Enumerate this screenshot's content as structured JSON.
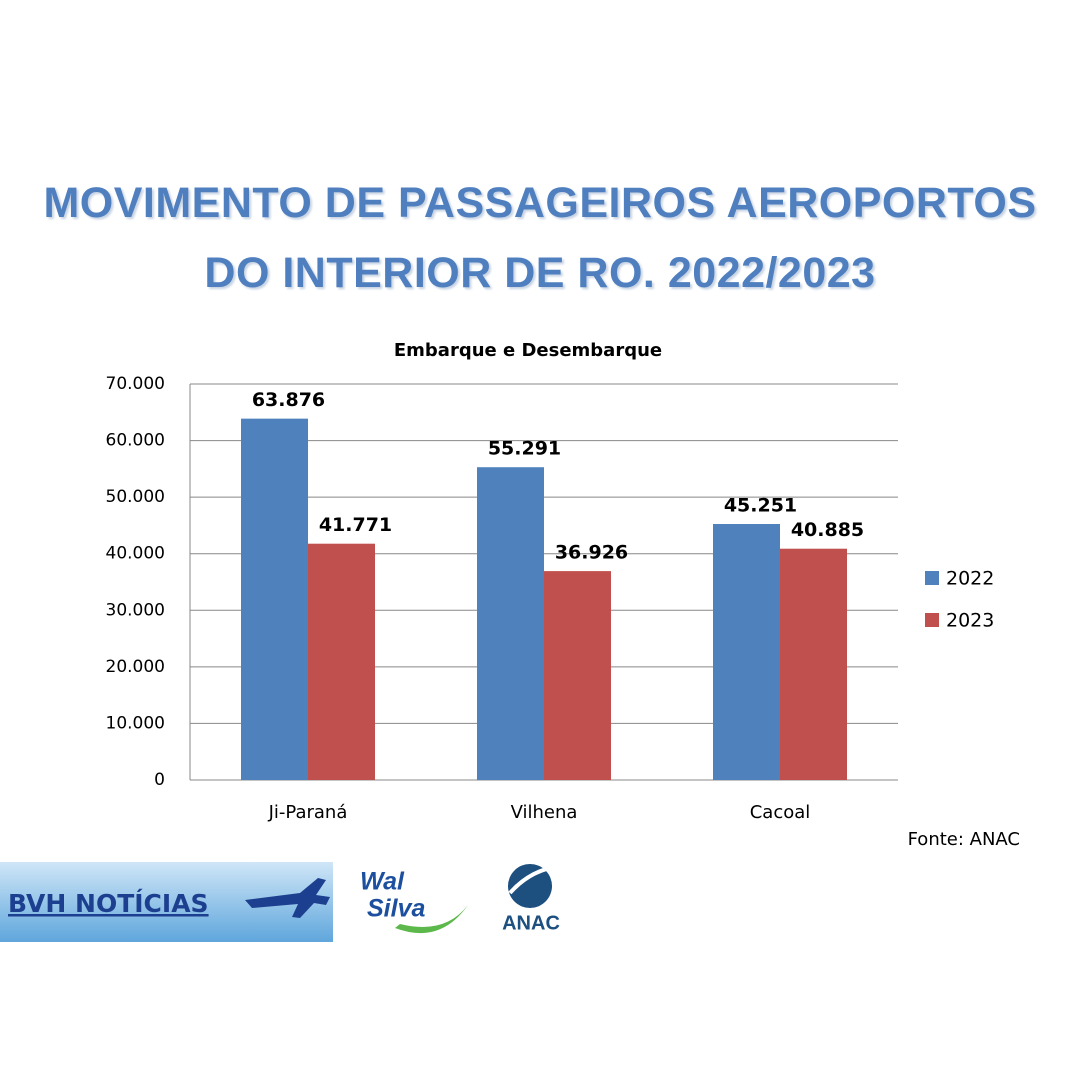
{
  "chart_data": {
    "type": "bar",
    "title": "MOVIMENTO DE PASSAGEIROS AEROPORTOS DO INTERIOR DE RO. 2022/2023",
    "subtitle": "Embarque e Desembarque",
    "categories": [
      "Ji-Paraná",
      "Vilhena",
      "Cacoal"
    ],
    "series": [
      {
        "name": "2022",
        "color": "#4f81bd",
        "values": [
          63876,
          55291,
          45251
        ],
        "value_labels": [
          "63.876",
          "55.291",
          "45.251"
        ]
      },
      {
        "name": "2023",
        "color": "#c0504d",
        "values": [
          41771,
          36926,
          40885
        ],
        "value_labels": [
          "41.771",
          "36.926",
          "40.885"
        ]
      }
    ],
    "ylim": [
      0,
      70000
    ],
    "yticks": [
      0,
      {
        "value": 10000,
        "label": "10.000"
      },
      {
        "value": 20000,
        "label": "20.000"
      },
      {
        "value": 30000,
        "label": "30.000"
      },
      {
        "value": 40000,
        "label": "40.000"
      },
      {
        "value": 50000,
        "label": "50.000"
      },
      {
        "value": 60000,
        "label": "60.000"
      },
      {
        "value": 70000,
        "label": "70.000"
      }
    ],
    "grid": true,
    "legend": "right",
    "source": "Fonte: ANAC"
  },
  "logos": {
    "bvh": "BVH NOTÍCIAS",
    "wal": "Wal",
    "silva": "Silva",
    "anac": "ANAC"
  }
}
